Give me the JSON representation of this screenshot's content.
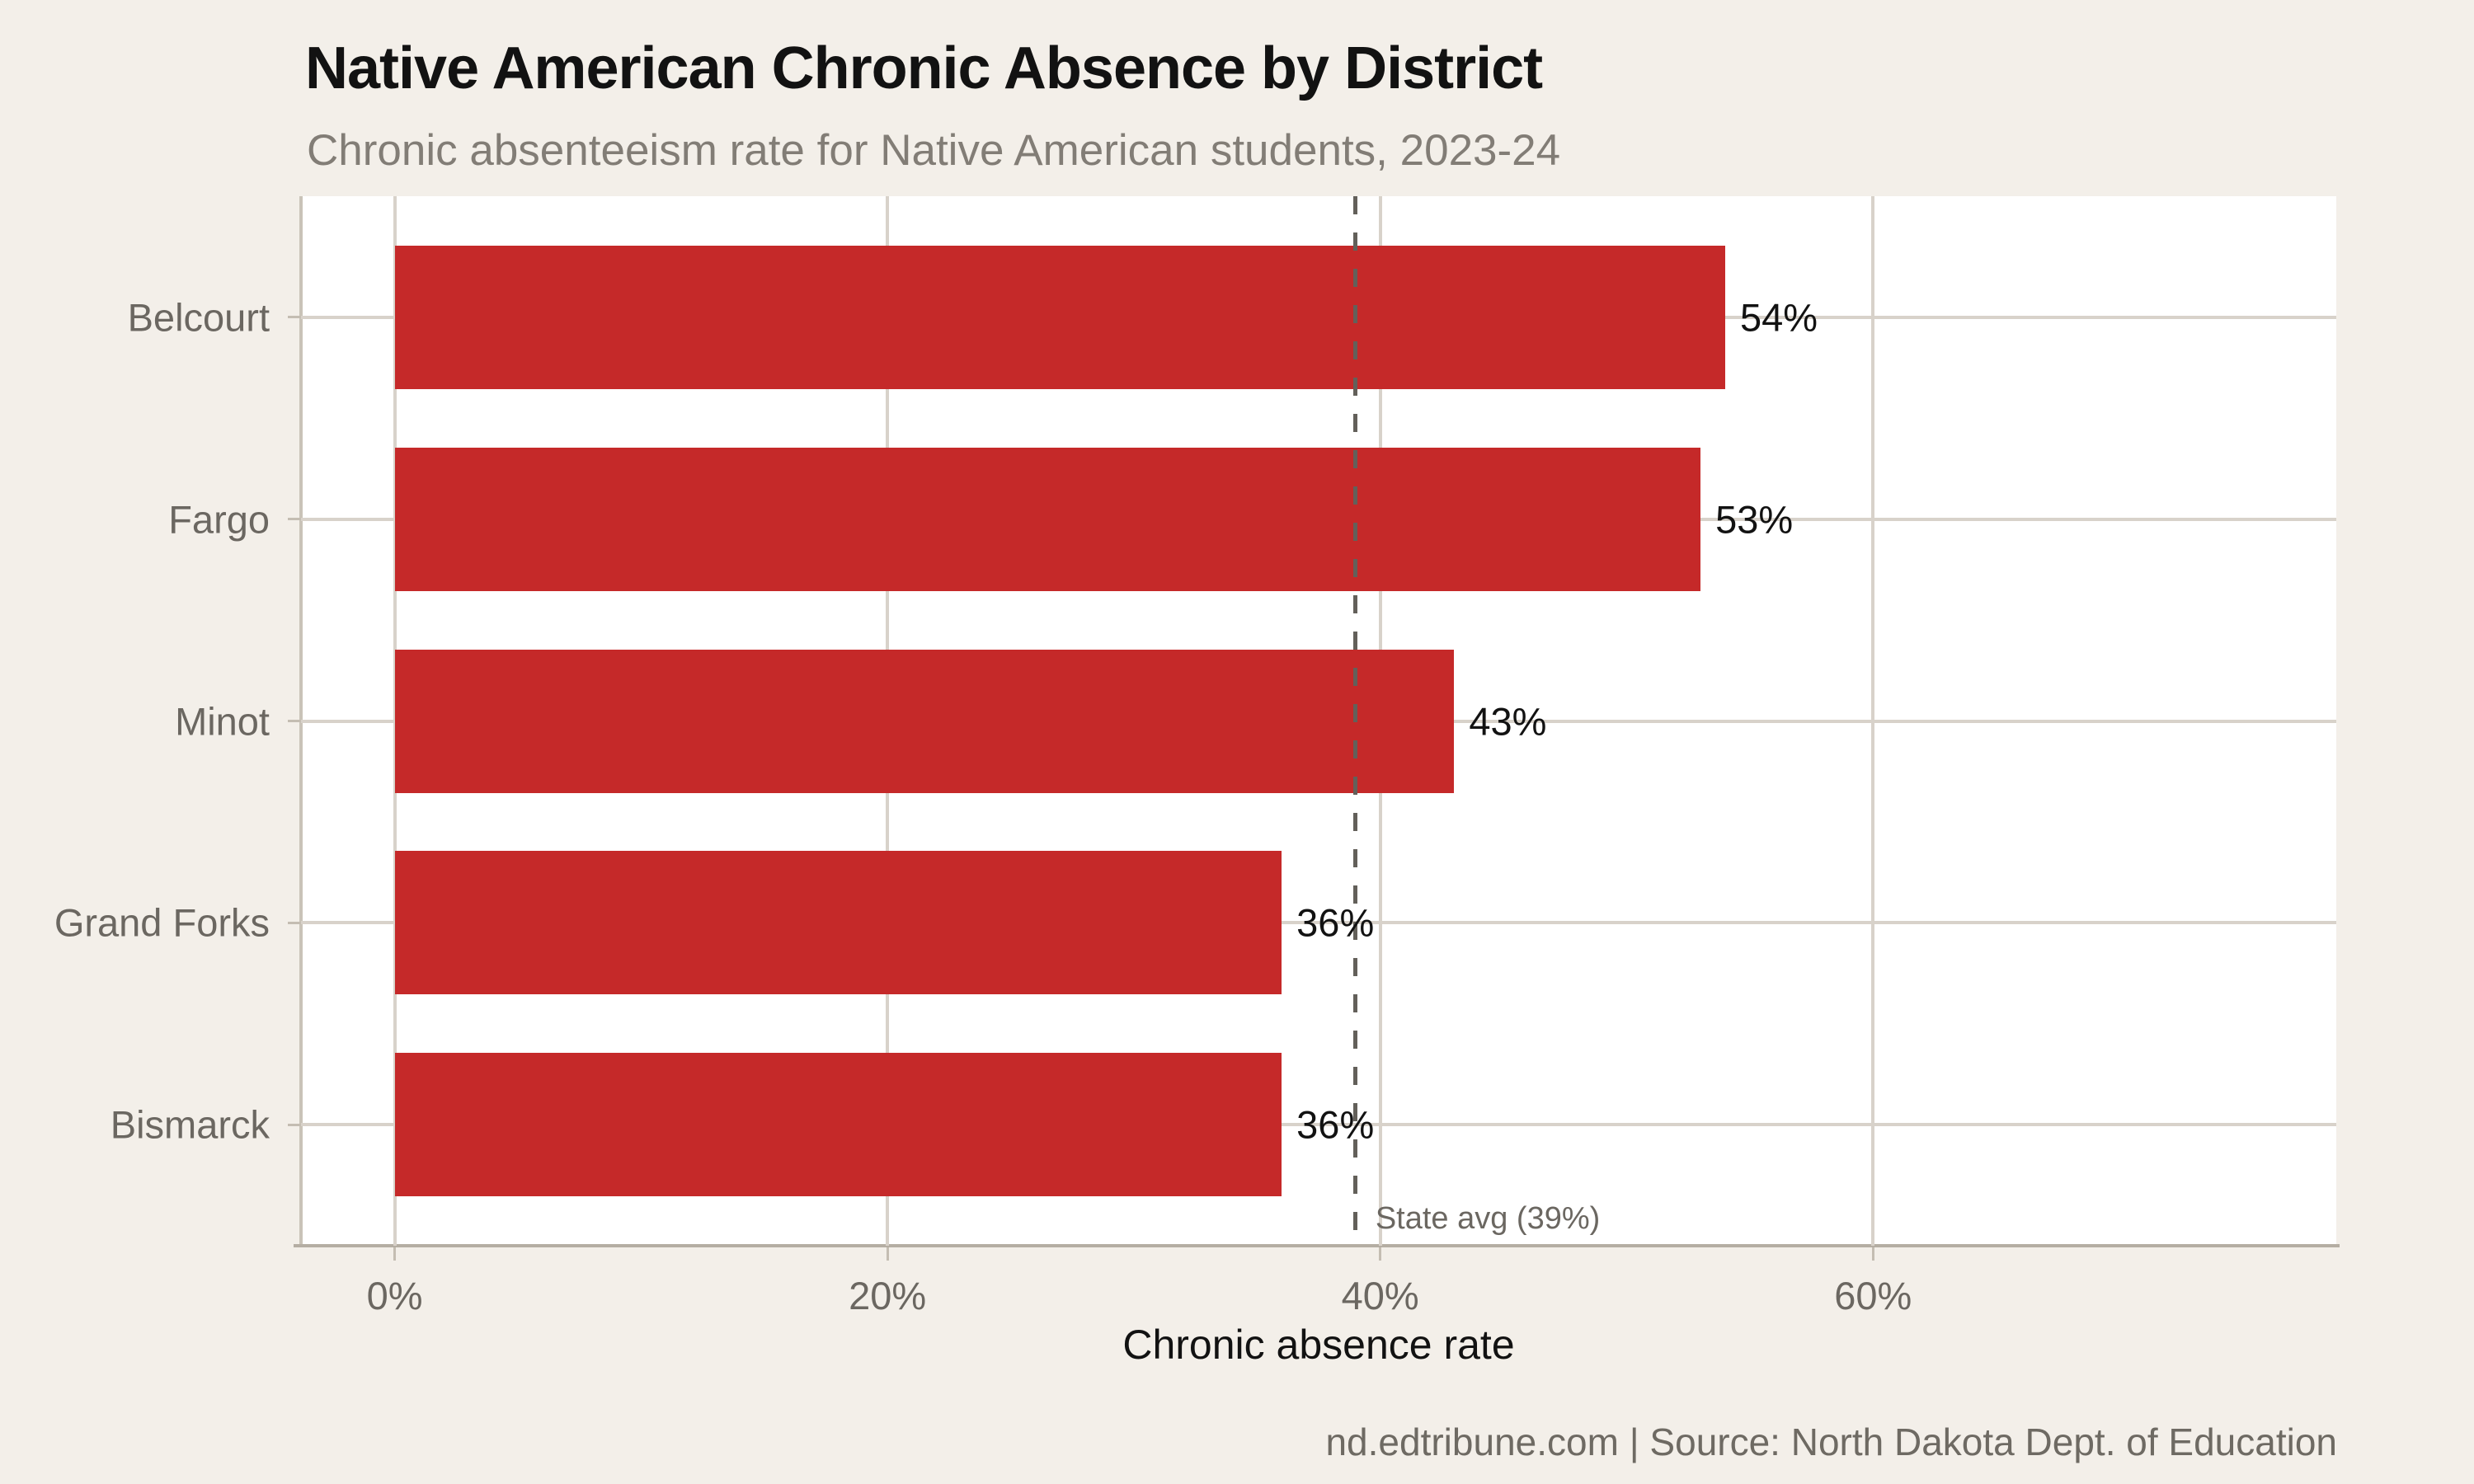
{
  "header": {
    "title": "Native American Chronic Absence by District",
    "subtitle": "Chronic absenteeism rate for Native American students, 2023-24"
  },
  "footer": {
    "credit": "nd.edtribune.com | Source: North Dakota Dept. of Education"
  },
  "chart_data": {
    "type": "bar",
    "orientation": "horizontal",
    "title": "Native American Chronic Absence by District",
    "subtitle": "Chronic absenteeism rate for Native American students, 2023-24",
    "categories": [
      "Belcourt",
      "Fargo",
      "Minot",
      "Grand Forks",
      "Bismarck"
    ],
    "values": [
      54,
      53,
      43,
      36,
      36
    ],
    "value_labels": [
      "54%",
      "53%",
      "43%",
      "36%",
      "36%"
    ],
    "xlabel": "Chronic absence rate",
    "ylabel": "",
    "xlim": [
      -3.8,
      78.8
    ],
    "xticks": [
      0,
      20,
      40,
      60
    ],
    "xtick_labels": [
      "0%",
      "20%",
      "40%",
      "60%"
    ],
    "grid": true,
    "legend": "none",
    "ref_line": {
      "value": 39,
      "label": "State avg (39%)"
    },
    "colors": {
      "bar": "#c52929",
      "background": "#f3efe9",
      "plot_background": "#ffffff",
      "gridline": "#d8d2ca",
      "axis_line": "#b5aea3",
      "ref_line": "#63605a",
      "title": "#121212",
      "subtitle": "#827d76",
      "tick_label": "#6b6761",
      "value_label": "#121212",
      "footer": "#6e6a63"
    }
  }
}
